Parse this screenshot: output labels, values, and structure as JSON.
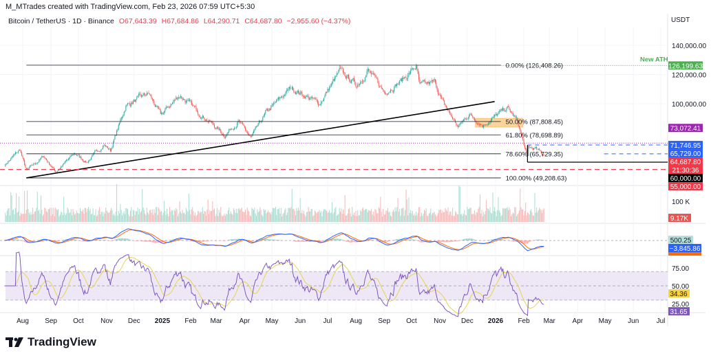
{
  "header": {
    "attribution": "M_MTrades created with TradingView.com, Feb 23, 2026 07:59 UTC+5:30"
  },
  "legend": {
    "symbol": "Bitcoin / TetherUS · 1D · Binance",
    "open": "O67,643.39",
    "high": "H67,684.86",
    "low": "L64,290.71",
    "close": "C64,687.80",
    "change": "−2,955.60 (−4.37%)"
  },
  "currency": "USDT",
  "brand": "TradingView",
  "colors": {
    "up": "#26a69a",
    "down": "#ef5350",
    "fib": "#131722",
    "trend": "#000000",
    "macd": "#2962ff",
    "signal": "#ff6d00",
    "rsi": "#7e57c2",
    "rsi_ma": "#e8d44d",
    "band": "#ede7f6"
  },
  "chart_data": {
    "type": "candlestick",
    "title": "Bitcoin / TetherUS · 1D · Binance",
    "ylabel": "USDT",
    "ylim": [
      40000,
      150000
    ],
    "price_ticks": [
      140000,
      120000,
      100000
    ],
    "price_tick_labels": [
      "140,000.00",
      "120,000.00",
      "100,000.00"
    ],
    "x_ticks": [
      "Aug",
      "Sep",
      "Oct",
      "Nov",
      "Dec",
      "2025",
      "Feb",
      "Mar",
      "Apr",
      "May",
      "Jun",
      "Jul",
      "Aug",
      "Sep",
      "Oct",
      "Nov",
      "Dec",
      "2026",
      "Feb",
      "Mar",
      "Apr",
      "May",
      "Jun",
      "Jul"
    ],
    "x_tick_dates": [
      "2024-08-01",
      "2024-09-01",
      "2024-10-01",
      "2024-11-01",
      "2024-12-01",
      "2025-01-01",
      "2025-02-01",
      "2025-03-01",
      "2025-04-01",
      "2025-05-01",
      "2025-06-01",
      "2025-07-01",
      "2025-08-01",
      "2025-09-01",
      "2025-10-01",
      "2025-11-01",
      "2025-12-01",
      "2026-01-01",
      "2026-02-01",
      "2026-03-01",
      "2026-04-01",
      "2026-05-01",
      "2026-06-01",
      "2026-07-01"
    ],
    "price_anchors": [
      [
        "2024-07-12",
        58000
      ],
      [
        "2024-07-29",
        68500
      ],
      [
        "2024-08-05",
        54000
      ],
      [
        "2024-08-24",
        64000
      ],
      [
        "2024-09-06",
        53500
      ],
      [
        "2024-09-27",
        66000
      ],
      [
        "2024-10-10",
        60000
      ],
      [
        "2024-10-29",
        72000
      ],
      [
        "2024-11-05",
        68000
      ],
      [
        "2024-11-22",
        99000
      ],
      [
        "2024-12-05",
        103000
      ],
      [
        "2024-12-17",
        107000
      ],
      [
        "2024-12-30",
        92000
      ],
      [
        "2025-01-20",
        106000
      ],
      [
        "2025-02-03",
        98000
      ],
      [
        "2025-02-25",
        86000
      ],
      [
        "2025-03-10",
        78500
      ],
      [
        "2025-03-25",
        88000
      ],
      [
        "2025-04-08",
        76500
      ],
      [
        "2025-04-25",
        94000
      ],
      [
        "2025-05-22",
        111000
      ],
      [
        "2025-06-22",
        100000
      ],
      [
        "2025-07-14",
        122000
      ],
      [
        "2025-08-02",
        113000
      ],
      [
        "2025-08-14",
        123000
      ],
      [
        "2025-09-01",
        108000
      ],
      [
        "2025-09-20",
        116000
      ],
      [
        "2025-10-06",
        125500
      ],
      [
        "2025-10-10",
        112000
      ],
      [
        "2025-10-27",
        114500
      ],
      [
        "2025-11-04",
        101000
      ],
      [
        "2025-11-21",
        84000
      ],
      [
        "2025-12-03",
        93000
      ],
      [
        "2025-12-18",
        85500
      ],
      [
        "2026-01-14",
        97000
      ],
      [
        "2026-01-25",
        88000
      ],
      [
        "2026-02-05",
        63000
      ],
      [
        "2026-02-06",
        70000
      ],
      [
        "2026-02-14",
        69000
      ],
      [
        "2026-02-23",
        64687.8
      ]
    ],
    "fib_levels": [
      {
        "label": "0.00% (126,408.26)",
        "price": 126408.26
      },
      {
        "label": "50.00% (87,808.45)",
        "price": 87808.45
      },
      {
        "label": "61.80% (78,698.89)",
        "price": 78698.89
      },
      {
        "label": "78.60% (65,729.35)",
        "price": 65729.35
      },
      {
        "label": "100.00% (49,208.63)",
        "price": 49208.63
      }
    ],
    "fib_range": [
      "2024-08-05",
      "2025-11-15"
    ],
    "trendline": [
      [
        "2024-08-05",
        49208.63
      ],
      [
        "2025-12-31",
        101500
      ]
    ],
    "annotation": "New ATH",
    "demand_zone": {
      "from": "2025-12-10",
      "to": "2026-01-31",
      "top": 90000,
      "bottom": 84000
    },
    "price_labels": [
      {
        "text": "126,199.63",
        "price": 126199.63,
        "bg": "#4caf50",
        "fg": "#fff"
      },
      {
        "text": "73,072.41",
        "price": 73072.41,
        "bg": "#9c27b0",
        "fg": "#fff"
      },
      {
        "text": "71,746.95",
        "price": 71746.95,
        "bg": "#2962ff",
        "fg": "#fff"
      },
      {
        "text": "65,729.00",
        "price": 67400,
        "bg": "#2962ff",
        "fg": "#fff"
      },
      {
        "text": "64,687.80",
        "price": 64687.8,
        "bg": "#f23645",
        "fg": "#fff"
      },
      {
        "text": "21:30:36",
        "price": 61500,
        "bg": "#f23645",
        "fg": "#fff"
      },
      {
        "text": "60,000.00",
        "price": 59300,
        "bg": "#000000",
        "fg": "#fff"
      },
      {
        "text": "55,000.00",
        "price": 55000,
        "bg": "#f23645",
        "fg": "#fff"
      }
    ],
    "volume": {
      "tick_label": "100 K",
      "last_label": "9.17K"
    },
    "macd": {
      "histogram_label": "500.25",
      "macd_label": "−3,845.86"
    },
    "rsi": {
      "ticks": [
        "75.00",
        "50.00",
        "25.00"
      ],
      "ma_label": "34.36",
      "rsi_label": "31.65",
      "band": [
        30,
        70
      ]
    }
  }
}
